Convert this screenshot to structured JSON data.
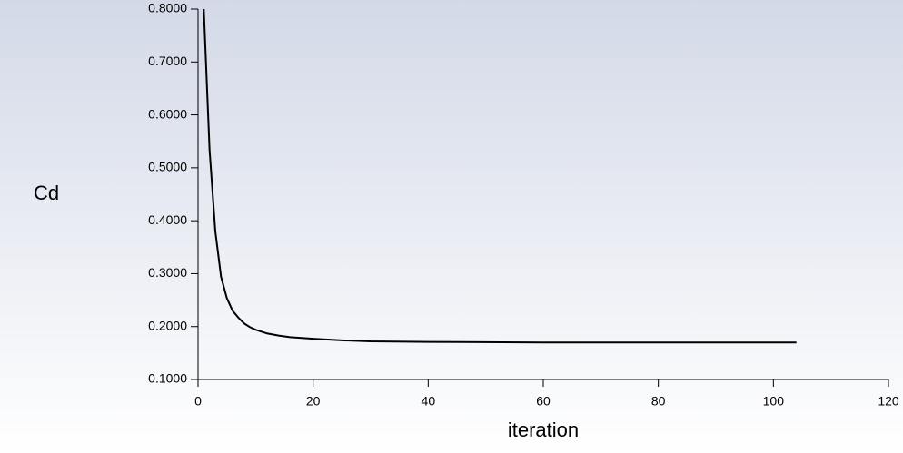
{
  "chart_data": {
    "type": "line",
    "ylabel": "Cd",
    "xlabel": "iteration",
    "x": [
      1,
      2,
      3,
      4,
      5,
      6,
      7,
      8,
      9,
      10,
      12,
      14,
      16,
      20,
      25,
      30,
      40,
      60,
      80,
      104
    ],
    "values": [
      0.8,
      0.534,
      0.38,
      0.294,
      0.254,
      0.23,
      0.217,
      0.206,
      0.199,
      0.194,
      0.187,
      0.183,
      0.18,
      0.177,
      0.174,
      0.172,
      0.171,
      0.17,
      0.17,
      0.17
    ],
    "color": "#000000",
    "xlim": [
      0,
      120
    ],
    "xticks": [
      0,
      20,
      40,
      60,
      80,
      100,
      120
    ],
    "ylim": [
      0.1,
      0.8
    ],
    "yticks": [
      {
        "value": 0.1,
        "label": "0.1000"
      },
      {
        "value": 0.2,
        "label": "0.2000"
      },
      {
        "value": 0.3,
        "label": "0.3000"
      },
      {
        "value": 0.4,
        "label": "0.4000"
      },
      {
        "value": 0.5,
        "label": "0.5000"
      },
      {
        "value": 0.6,
        "label": "0.6000"
      },
      {
        "value": 0.7,
        "label": "0.7000"
      },
      {
        "value": 0.8,
        "label": "0.8000"
      }
    ],
    "grid": false
  }
}
